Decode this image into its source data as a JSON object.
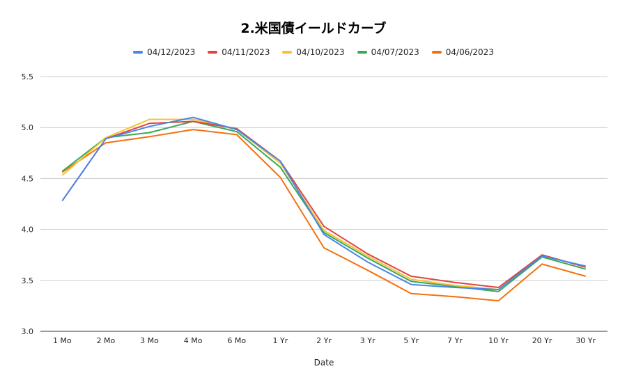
{
  "chart_data": {
    "type": "line",
    "title": "2.米国債イールドカーブ",
    "xlabel": "Date",
    "ylabel": "",
    "categories": [
      "1 Mo",
      "2 Mo",
      "3 Mo",
      "4 Mo",
      "6 Mo",
      "1 Yr",
      "2 Yr",
      "3 Yr",
      "5 Yr",
      "7 Yr",
      "10 Yr",
      "20 Yr",
      "30 Yr"
    ],
    "ylim": [
      3.0,
      5.5
    ],
    "yticks": [
      "3.0",
      "3.5",
      "4.0",
      "4.5",
      "5.0",
      "5.5"
    ],
    "grid": true,
    "legend_position": "top",
    "series": [
      {
        "name": "04/12/2023",
        "color": "#4a86e8",
        "values": [
          4.28,
          4.89,
          5.01,
          5.1,
          4.98,
          4.67,
          3.95,
          3.68,
          3.46,
          3.43,
          3.41,
          3.74,
          3.64
        ]
      },
      {
        "name": "04/11/2023",
        "color": "#e0443e",
        "values": [
          4.28,
          4.89,
          5.04,
          5.06,
          4.99,
          4.67,
          4.03,
          3.76,
          3.54,
          3.48,
          3.43,
          3.75,
          3.63
        ]
      },
      {
        "name": "04/10/2023",
        "color": "#f6c231",
        "values": [
          4.53,
          4.9,
          5.08,
          5.08,
          4.98,
          4.65,
          3.99,
          3.74,
          3.51,
          3.45,
          3.41,
          3.75,
          3.63
        ]
      },
      {
        "name": "04/07/2023",
        "color": "#3aa757",
        "values": [
          4.57,
          4.9,
          4.95,
          5.06,
          4.96,
          4.61,
          3.97,
          3.72,
          3.49,
          3.44,
          3.39,
          3.73,
          3.61
        ]
      },
      {
        "name": "04/06/2023",
        "color": "#f4700f",
        "values": [
          4.56,
          4.85,
          4.91,
          4.98,
          4.93,
          4.51,
          3.82,
          3.6,
          3.37,
          3.34,
          3.3,
          3.66,
          3.54
        ]
      }
    ]
  }
}
